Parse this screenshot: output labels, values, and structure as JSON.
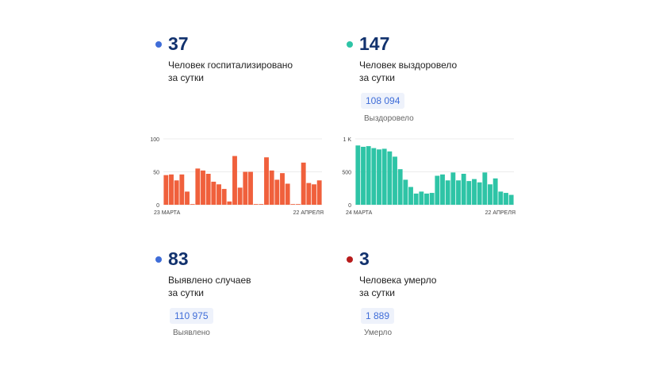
{
  "stats": {
    "hospitalized": {
      "value": "37",
      "line1": "Человек госпитализировано",
      "line2": "за сутки",
      "dot_color": "#3f6dd8"
    },
    "recovered": {
      "value": "147",
      "line1": "Человек выздоровело",
      "line2": "за сутки",
      "total": "108 094",
      "total_label": "Выздоровело",
      "dot_color": "#2ec4a6"
    },
    "cases": {
      "value": "83",
      "line1": "Выявлено случаев",
      "line2": "за сутки",
      "total": "110 975",
      "total_label": "Выявлено",
      "dot_color": "#3f6dd8"
    },
    "deaths": {
      "value": "3",
      "line1": "Человека умерло",
      "line2": "за сутки",
      "total": "1 889",
      "total_label": "Умерло",
      "dot_color": "#b81c1c"
    }
  },
  "chart_data": [
    {
      "type": "bar",
      "color": "#f0603c",
      "ylim": [
        0,
        100
      ],
      "yticks": [
        "0",
        "50",
        "100"
      ],
      "x_start_label": "23 МАРТА",
      "x_end_label": "22 АПРЕЛЯ",
      "values": [
        45,
        46,
        37,
        46,
        20,
        1,
        55,
        52,
        47,
        35,
        31,
        24,
        5,
        74,
        26,
        50,
        50,
        1,
        1,
        72,
        52,
        38,
        48,
        32,
        1,
        1,
        64,
        33,
        31,
        37
      ]
    },
    {
      "type": "bar",
      "color": "#2ec4a6",
      "ylim": [
        0,
        1000
      ],
      "yticks": [
        "0",
        "500",
        "1 K"
      ],
      "x_start_label": "24 МАРТА",
      "x_end_label": "22 АПРЕЛЯ",
      "values": [
        900,
        880,
        890,
        860,
        840,
        850,
        810,
        730,
        540,
        380,
        270,
        170,
        200,
        170,
        180,
        440,
        460,
        370,
        490,
        370,
        470,
        360,
        390,
        340,
        490,
        310,
        400,
        200,
        180,
        150
      ]
    }
  ]
}
